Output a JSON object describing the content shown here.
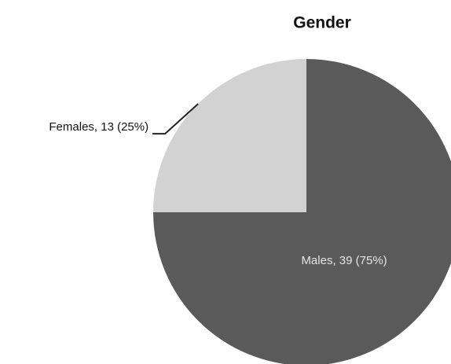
{
  "chart_data": {
    "type": "pie",
    "title": "Gender",
    "values": [
      39,
      13
    ],
    "value_labels": [
      "Males, 39 (75%)",
      "Females, 13 (25%)"
    ],
    "colors": [
      "#5a5a5a",
      "#d2d2d2"
    ]
  }
}
